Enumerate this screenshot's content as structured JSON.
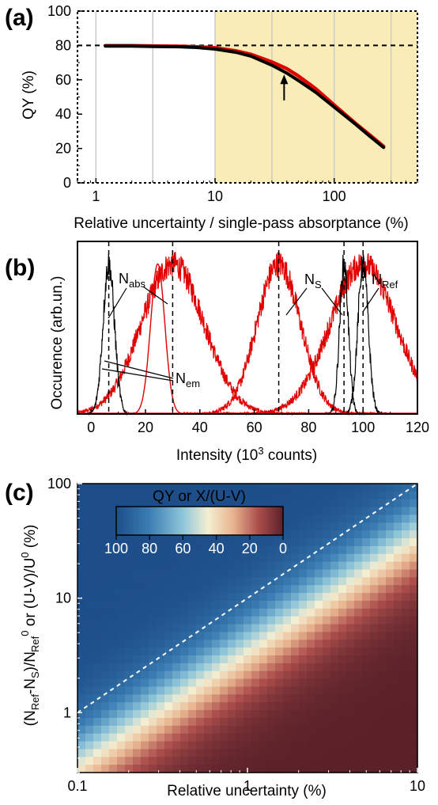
{
  "chart_data": [
    {
      "panel": "(a)",
      "type": "line",
      "xlabel": "Relative uncertainty / single-pass absorptance (%)",
      "ylabel": "QY (%)",
      "x_scale": "log",
      "xlim": [
        0.7,
        500
      ],
      "ylim": [
        0,
        100
      ],
      "x_ticks": [
        1,
        10,
        100
      ],
      "x_tick_labels": [
        "1",
        "10",
        "100"
      ],
      "y_ticks": [
        0,
        20,
        40,
        60,
        80,
        100
      ],
      "y_tick_labels": [
        "0",
        "20",
        "40",
        "60",
        "80",
        "100"
      ],
      "reference_line": {
        "y": 80,
        "style": "dashed"
      },
      "shaded_region": {
        "x_from": 10,
        "x_to": 500,
        "color": "#f9ecb6"
      },
      "vertical_grid_x": [
        1,
        3,
        10,
        30,
        100,
        300
      ],
      "arrow": {
        "x": 38,
        "y_from": 48,
        "y_to": 63
      },
      "series": [
        {
          "color": "#e00000",
          "x": [
            1.2,
            2,
            3,
            5,
            7,
            10,
            15,
            20,
            30,
            40,
            50,
            70,
            100,
            150,
            200,
            260
          ],
          "y": [
            79.8,
            79.8,
            79.7,
            79.5,
            79.2,
            78.6,
            76.8,
            74.8,
            70.3,
            66.5,
            62.2,
            54.8,
            45.3,
            34.8,
            27.8,
            21.2
          ]
        },
        {
          "color": "#000000",
          "x": [
            1.2,
            2,
            3,
            5,
            7,
            10,
            15,
            20,
            30,
            40,
            50,
            70,
            100,
            150,
            200,
            260
          ],
          "y": [
            79.6,
            79.6,
            79.4,
            79.2,
            78.8,
            77.9,
            76.0,
            73.8,
            68.5,
            63.9,
            59.6,
            52.7,
            44.1,
            34.3,
            27.0,
            20.6
          ]
        }
      ]
    },
    {
      "panel": "(b)",
      "type": "line",
      "xlabel": "Intensity (10³ counts)",
      "ylabel": "Occurence (arb.un.)",
      "xlim": [
        -5,
        120
      ],
      "ylim": [
        0,
        1.15
      ],
      "x_ticks": [
        0,
        20,
        40,
        60,
        80,
        100,
        120
      ],
      "x_tick_labels": [
        "0",
        "20",
        "40",
        "60",
        "80",
        "100",
        "120"
      ],
      "reference_lines_x": [
        6.5,
        30,
        69,
        93,
        100
      ],
      "distributions": [
        {
          "color": "#e00000",
          "center": 30,
          "width": 11.5,
          "peak": 1.0,
          "noisy": true
        },
        {
          "color": "#e00000",
          "center": 24.5,
          "width": 2.6,
          "peak": 1.0,
          "noisy": false
        },
        {
          "color": "#e00000",
          "center": 69,
          "width": 8.0,
          "peak": 1.0,
          "noisy": true
        },
        {
          "color": "#e00000",
          "center": 100,
          "width": 12.0,
          "peak": 1.0,
          "noisy": true
        },
        {
          "color": "#000000",
          "center": 6.5,
          "width": 2.1,
          "peak": 1.0,
          "noisy": true
        },
        {
          "color": "#000000",
          "center": 93,
          "width": 1.6,
          "peak": 1.0,
          "noisy": true
        },
        {
          "color": "#000000",
          "center": 100,
          "width": 1.9,
          "peak": 1.0,
          "noisy": true
        }
      ],
      "annotations": [
        {
          "base": "N",
          "sub": "abs"
        },
        {
          "base": "N",
          "sub": "em"
        },
        {
          "base": "N",
          "sub": "S"
        },
        {
          "base": "N",
          "sub": "Ref"
        }
      ]
    },
    {
      "panel": "(c)",
      "type": "heatmap",
      "xlabel": "Relative uncertainty (%)",
      "ylabel": {
        "parts": [
          "(N",
          "Ref",
          "-N",
          "S",
          ")/N",
          "Ref",
          "0",
          " or (U-V)/U",
          "0",
          " (%)"
        ]
      },
      "x_scale": "log",
      "y_scale": "log",
      "xlim": [
        0.1,
        10
      ],
      "ylim": [
        0.3,
        100
      ],
      "x_ticks": [
        0.1,
        1,
        10
      ],
      "x_tick_labels": [
        "0.1",
        "1",
        "10"
      ],
      "y_ticks": [
        1,
        10,
        100
      ],
      "y_tick_labels": [
        "1",
        "10",
        "100"
      ],
      "value_model": "QY = 100 / (1 + (x / (0.3 * y))^2)",
      "colormap": [
        "#5a2129",
        "#ad4f4d",
        "#e8b48f",
        "#f4efd2",
        "#8ec5d9",
        "#3b7eb4",
        "#1d4e89"
      ],
      "diagonal_line": {
        "from": [
          0.1,
          1
        ],
        "to": [
          10,
          100
        ],
        "style": "dashed",
        "color": "#ffffff"
      },
      "colorbar": {
        "title": "QY or X/(U-V)",
        "tick_labels": [
          "100",
          "80",
          "60",
          "40",
          "20",
          "0"
        ],
        "range": [
          100,
          0
        ]
      }
    }
  ]
}
